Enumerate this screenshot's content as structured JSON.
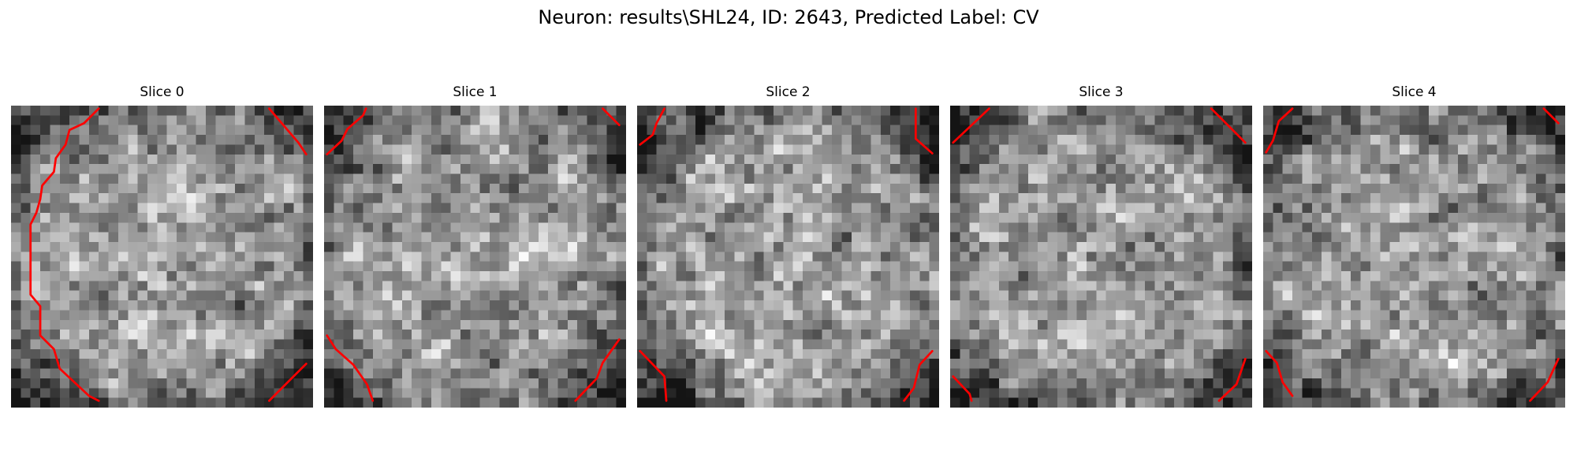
{
  "figure": {
    "title": "Neuron: results\\SHL24, ID: 2643, Predicted Label: CV"
  },
  "panels": [
    {
      "title": "Slice 0"
    },
    {
      "title": "Slice 1"
    },
    {
      "title": "Slice 2"
    },
    {
      "title": "Slice 3"
    },
    {
      "title": "Slice 4"
    }
  ],
  "colors": {
    "background": "#ffffff",
    "contour": "#ff0000",
    "colormap": "gray"
  }
}
